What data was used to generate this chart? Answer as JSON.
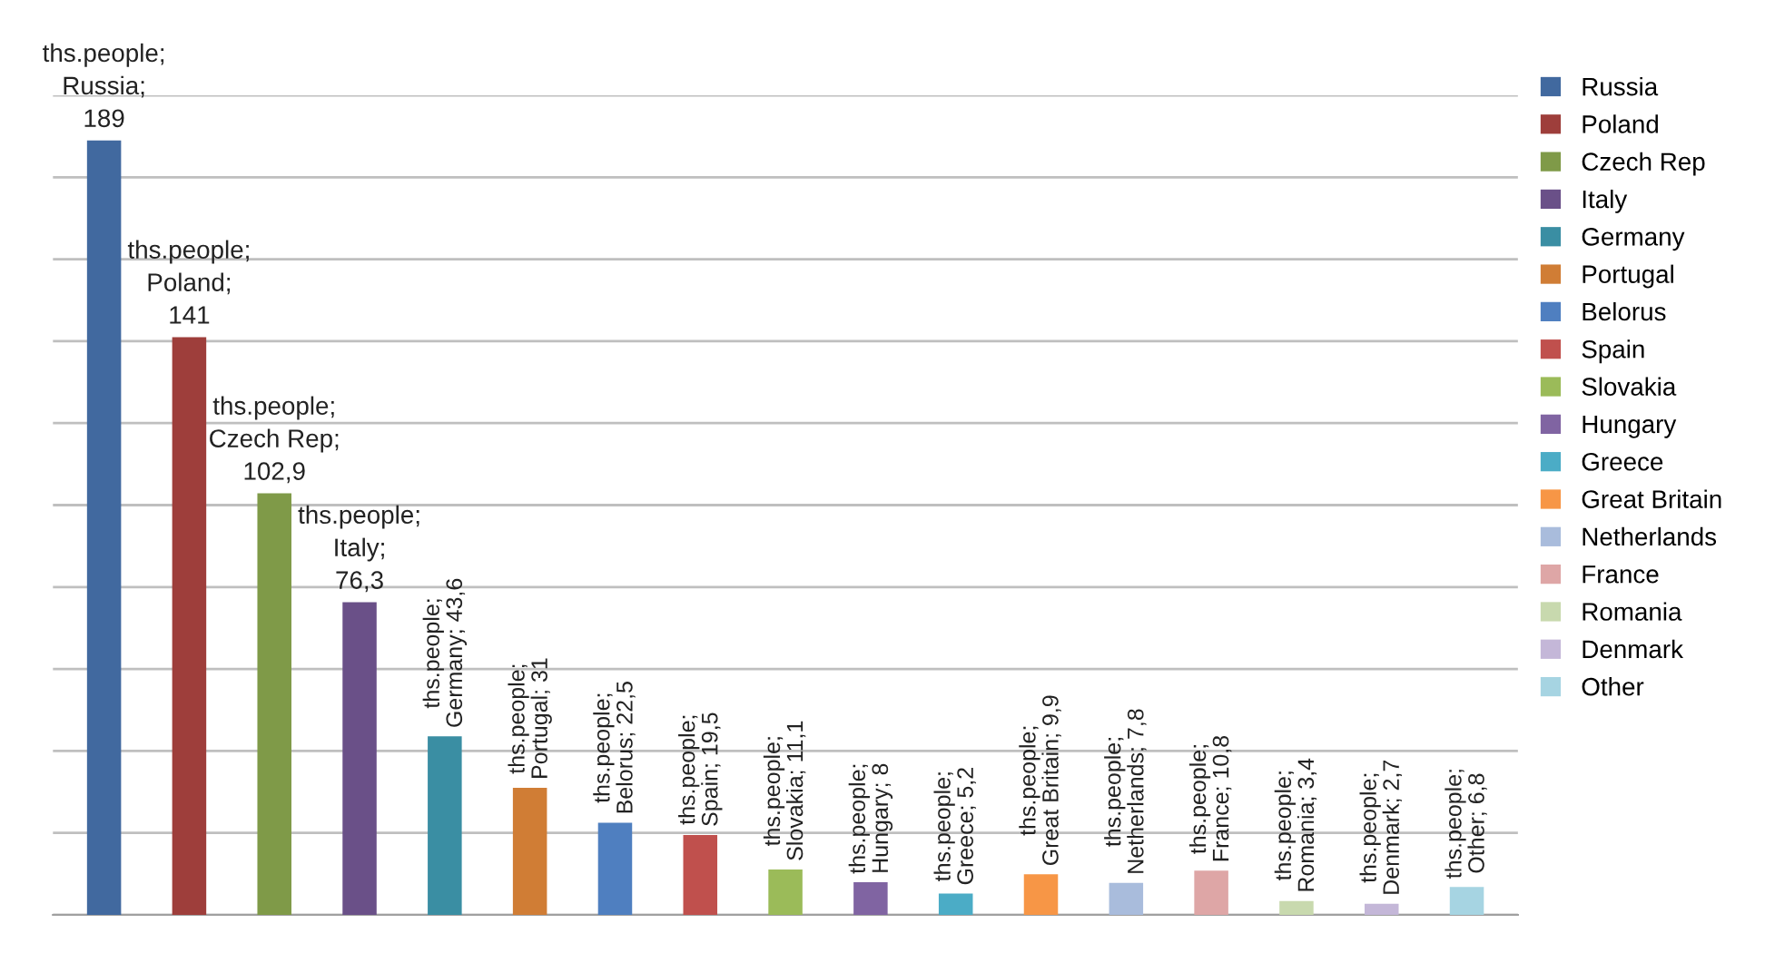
{
  "chart_data": {
    "type": "bar",
    "categories": [
      null,
      null,
      null,
      null,
      null,
      null,
      null,
      null,
      null,
      null,
      null,
      null,
      null,
      null,
      null,
      null,
      null
    ],
    "ylim": [
      0,
      200
    ],
    "yticks": [
      {
        "value": 0,
        "label": null
      },
      {
        "value": 20,
        "label": null
      },
      {
        "value": 40,
        "label": null
      },
      {
        "value": 60,
        "label": null
      },
      {
        "value": 80,
        "label": null
      },
      {
        "value": 100,
        "label": null
      },
      {
        "value": 120,
        "label": null
      },
      {
        "value": 140,
        "label": null
      },
      {
        "value": 160,
        "label": null
      },
      {
        "value": 180,
        "label": null
      },
      {
        "value": 200,
        "label": null
      }
    ],
    "grid": "y",
    "legend": "top right",
    "stacked": true,
    "series": [
      {
        "name": "Russia",
        "color": "#41699f",
        "values": [
          189,
          null,
          null,
          null,
          null,
          null,
          null,
          null,
          null,
          null,
          null,
          null,
          null,
          null,
          null,
          null,
          null
        ],
        "value_labels": [
          "ths.people; Russia; 189",
          null,
          null,
          null,
          null,
          null,
          null,
          null,
          null,
          null,
          null,
          null,
          null,
          null,
          null,
          null,
          null
        ]
      },
      {
        "name": "Poland",
        "color": "#9e3e3b",
        "values": [
          null,
          141,
          null,
          null,
          null,
          null,
          null,
          null,
          null,
          null,
          null,
          null,
          null,
          null,
          null,
          null,
          null
        ],
        "value_labels": [
          null,
          "ths.people; Poland; 141",
          null,
          null,
          null,
          null,
          null,
          null,
          null,
          null,
          null,
          null,
          null,
          null,
          null,
          null,
          null
        ]
      },
      {
        "name": "Czech Rep",
        "color": "#7f9a48",
        "values": [
          null,
          null,
          102.9,
          null,
          null,
          null,
          null,
          null,
          null,
          null,
          null,
          null,
          null,
          null,
          null,
          null,
          null
        ],
        "value_labels": [
          null,
          null,
          "ths.people; Czech Rep; 102,9",
          null,
          null,
          null,
          null,
          null,
          null,
          null,
          null,
          null,
          null,
          null,
          null,
          null,
          null
        ]
      },
      {
        "name": "Italy",
        "color": "#6a5088",
        "values": [
          null,
          null,
          null,
          76.3,
          null,
          null,
          null,
          null,
          null,
          null,
          null,
          null,
          null,
          null,
          null,
          null,
          null
        ],
        "value_labels": [
          null,
          null,
          null,
          "ths.people; Italy; 76,3",
          null,
          null,
          null,
          null,
          null,
          null,
          null,
          null,
          null,
          null,
          null,
          null,
          null
        ]
      },
      {
        "name": "Germany",
        "color": "#3a8ea3",
        "values": [
          null,
          null,
          null,
          null,
          43.6,
          null,
          null,
          null,
          null,
          null,
          null,
          null,
          null,
          null,
          null,
          null,
          null
        ],
        "value_labels": [
          null,
          null,
          null,
          null,
          "ths.people; Germany; 43,6",
          null,
          null,
          null,
          null,
          null,
          null,
          null,
          null,
          null,
          null,
          null,
          null
        ]
      },
      {
        "name": "Portugal",
        "color": "#d07d35",
        "values": [
          null,
          null,
          null,
          null,
          null,
          31,
          null,
          null,
          null,
          null,
          null,
          null,
          null,
          null,
          null,
          null,
          null
        ],
        "value_labels": [
          null,
          null,
          null,
          null,
          null,
          "ths.people; Portugal; 31",
          null,
          null,
          null,
          null,
          null,
          null,
          null,
          null,
          null,
          null,
          null
        ]
      },
      {
        "name": "Belorus",
        "color": "#4f7fc0",
        "values": [
          null,
          null,
          null,
          null,
          null,
          null,
          22.5,
          null,
          null,
          null,
          null,
          null,
          null,
          null,
          null,
          null,
          null
        ],
        "value_labels": [
          null,
          null,
          null,
          null,
          null,
          null,
          "ths.people; Belorus; 22,5",
          null,
          null,
          null,
          null,
          null,
          null,
          null,
          null,
          null,
          null
        ]
      },
      {
        "name": "Spain",
        "color": "#c0504d",
        "values": [
          null,
          null,
          null,
          null,
          null,
          null,
          null,
          19.5,
          null,
          null,
          null,
          null,
          null,
          null,
          null,
          null,
          null
        ],
        "value_labels": [
          null,
          null,
          null,
          null,
          null,
          null,
          null,
          "ths.people; Spain; 19,5",
          null,
          null,
          null,
          null,
          null,
          null,
          null,
          null,
          null
        ]
      },
      {
        "name": "Slovakia",
        "color": "#9bbb59",
        "values": [
          null,
          null,
          null,
          null,
          null,
          null,
          null,
          null,
          11.1,
          null,
          null,
          null,
          null,
          null,
          null,
          null,
          null
        ],
        "value_labels": [
          null,
          null,
          null,
          null,
          null,
          null,
          null,
          null,
          "ths.people; Slovakia; 11,1",
          null,
          null,
          null,
          null,
          null,
          null,
          null,
          null
        ]
      },
      {
        "name": "Hungary",
        "color": "#8064a2",
        "values": [
          null,
          null,
          null,
          null,
          null,
          null,
          null,
          null,
          null,
          8,
          null,
          null,
          null,
          null,
          null,
          null,
          null
        ],
        "value_labels": [
          null,
          null,
          null,
          null,
          null,
          null,
          null,
          null,
          null,
          "ths.people; Hungary; 8",
          null,
          null,
          null,
          null,
          null,
          null,
          null
        ]
      },
      {
        "name": "Greece",
        "color": "#4bacc6",
        "values": [
          null,
          null,
          null,
          null,
          null,
          null,
          null,
          null,
          null,
          null,
          5.2,
          null,
          null,
          null,
          null,
          null,
          null
        ],
        "value_labels": [
          null,
          null,
          null,
          null,
          null,
          null,
          null,
          null,
          null,
          null,
          "ths.people; Greece; 5,2",
          null,
          null,
          null,
          null,
          null,
          null
        ]
      },
      {
        "name": "Great Britain",
        "color": "#f79646",
        "values": [
          null,
          null,
          null,
          null,
          null,
          null,
          null,
          null,
          null,
          null,
          null,
          9.9,
          null,
          null,
          null,
          null,
          null
        ],
        "value_labels": [
          null,
          null,
          null,
          null,
          null,
          null,
          null,
          null,
          null,
          null,
          null,
          "ths.people; Great Britain; 9,9",
          null,
          null,
          null,
          null,
          null
        ]
      },
      {
        "name": "Netherlands",
        "color": "#a9bcdc",
        "values": [
          null,
          null,
          null,
          null,
          null,
          null,
          null,
          null,
          null,
          null,
          null,
          null,
          7.8,
          null,
          null,
          null,
          null
        ],
        "value_labels": [
          null,
          null,
          null,
          null,
          null,
          null,
          null,
          null,
          null,
          null,
          null,
          null,
          "ths.people; Netherlands; 7,8",
          null,
          null,
          null,
          null
        ]
      },
      {
        "name": "France",
        "color": "#dea6a6",
        "values": [
          null,
          null,
          null,
          null,
          null,
          null,
          null,
          null,
          null,
          null,
          null,
          null,
          null,
          10.8,
          null,
          null,
          null
        ],
        "value_labels": [
          null,
          null,
          null,
          null,
          null,
          null,
          null,
          null,
          null,
          null,
          null,
          null,
          null,
          "ths.people; France; 10,8",
          null,
          null,
          null
        ]
      },
      {
        "name": "Romania",
        "color": "#c8d9ae",
        "values": [
          null,
          null,
          null,
          null,
          null,
          null,
          null,
          null,
          null,
          null,
          null,
          null,
          null,
          null,
          3.4,
          null,
          null
        ],
        "value_labels": [
          null,
          null,
          null,
          null,
          null,
          null,
          null,
          null,
          null,
          null,
          null,
          null,
          null,
          null,
          "ths.people; Romania; 3,4",
          null,
          null
        ]
      },
      {
        "name": "Denmark",
        "color": "#c4b7d8",
        "values": [
          null,
          null,
          null,
          null,
          null,
          null,
          null,
          null,
          null,
          null,
          null,
          null,
          null,
          null,
          null,
          2.7,
          null
        ],
        "value_labels": [
          null,
          null,
          null,
          null,
          null,
          null,
          null,
          null,
          null,
          null,
          null,
          null,
          null,
          null,
          null,
          "ths.people; Denmark; 2,7",
          null
        ]
      },
      {
        "name": "Other",
        "color": "#a6d4e2",
        "values": [
          null,
          null,
          null,
          null,
          null,
          null,
          null,
          null,
          null,
          null,
          null,
          null,
          null,
          null,
          null,
          null,
          6.8
        ],
        "value_labels": [
          null,
          null,
          null,
          null,
          null,
          null,
          null,
          null,
          null,
          null,
          null,
          null,
          null,
          null,
          null,
          null,
          "ths.people; Other; 6,8"
        ]
      }
    ]
  }
}
